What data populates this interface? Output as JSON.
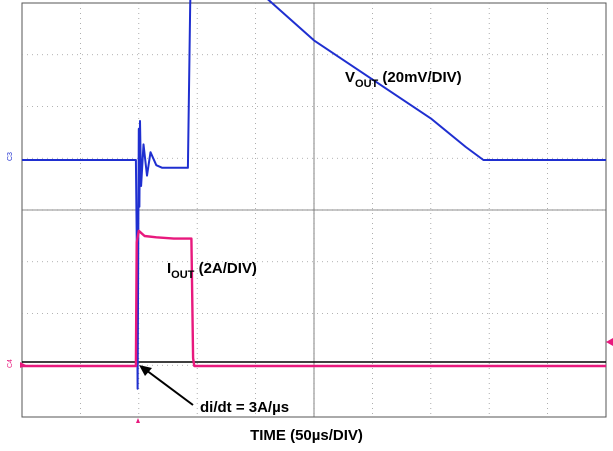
{
  "chart_data": {
    "type": "line",
    "title": "",
    "xlabel": "TIME (50µs/DIV)",
    "ylabel": "",
    "grid": true,
    "grid_divisions": {
      "x": 10,
      "y": 8
    },
    "xlim": [
      0,
      500
    ],
    "x_unit": "µs",
    "series": [
      {
        "name": "VOUT (20mV/DIV)",
        "label_main": "V",
        "label_sub": "OUT",
        "label_rest": " (20mV/DIV)",
        "color": "#1f2fd0",
        "unit": "mV",
        "channel_marker": "C3",
        "x": [
          0,
          97.5,
          98.5,
          99,
          100,
          100.5,
          101,
          102,
          104,
          107,
          110,
          115,
          120,
          130,
          142,
          144,
          146,
          149,
          153,
          158,
          165,
          175,
          190,
          250,
          300,
          350,
          380,
          395,
          400,
          450,
          500
        ],
        "y": [
          0,
          0,
          -40,
          -88,
          12,
          -18,
          15,
          -10,
          6,
          -6,
          3,
          -2,
          -3,
          -3,
          -3,
          60,
          90,
          75,
          84,
          72,
          77,
          72,
          70,
          46,
          31,
          16,
          5,
          0,
          0,
          0,
          0
        ]
      },
      {
        "name": "IOUT (2A/DIV)",
        "label_main": "I",
        "label_sub": "OUT",
        "label_rest": " (2A/DIV)",
        "color": "#e8197d",
        "unit": "A",
        "channel_marker": "C4",
        "x": [
          0,
          97.5,
          98.2,
          100,
          105,
          115,
          130,
          145,
          146.5,
          147.5,
          200,
          300,
          400,
          500
        ],
        "y": [
          0,
          0,
          4.75,
          5.2,
          5.0,
          4.95,
          4.9,
          4.9,
          0.3,
          0,
          0,
          0,
          0,
          0
        ]
      }
    ],
    "annotations": [
      {
        "text": "di/dt = 3A/µs",
        "points_to": {
          "x": 97.5,
          "series": "IOUT (2A/DIV)"
        }
      }
    ]
  }
}
